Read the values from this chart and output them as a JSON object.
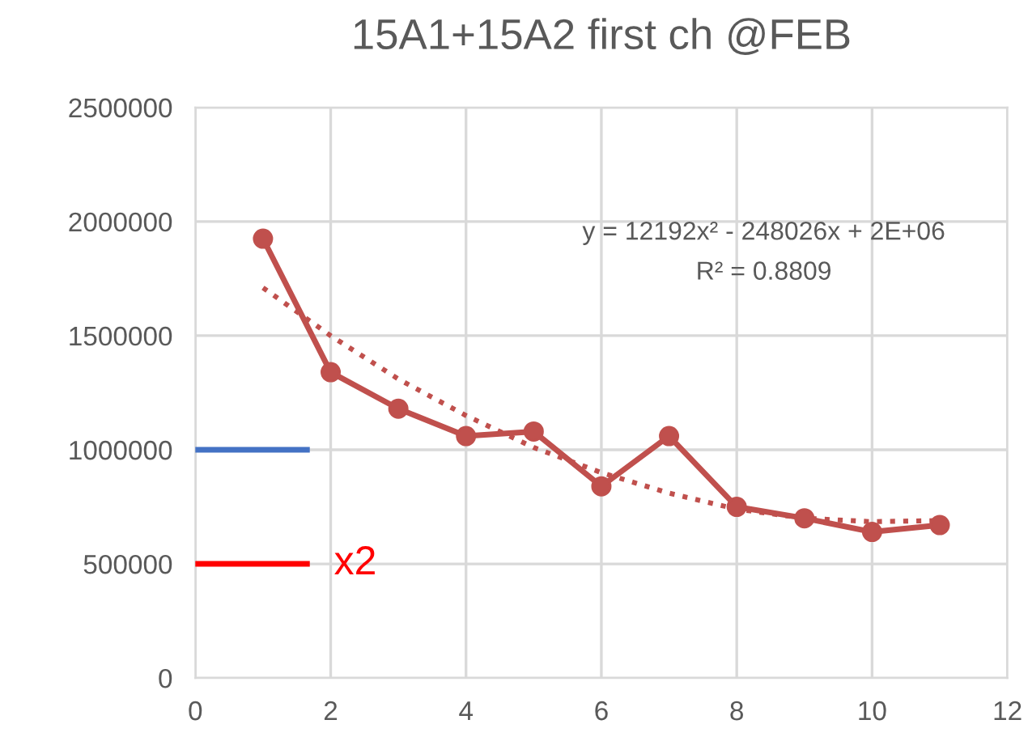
{
  "chart_data": {
    "type": "line",
    "title": "15A1+15A2 first ch @FEB",
    "x": [
      1,
      2,
      3,
      4,
      5,
      6,
      7,
      8,
      9,
      10,
      11
    ],
    "series": [
      {
        "color": "#c0504d",
        "values": [
          1925000,
          1340000,
          1180000,
          1060000,
          1080000,
          840000,
          1060000,
          750000,
          700000,
          640000,
          670000
        ],
        "marker": "circle",
        "line_style": "solid"
      },
      {
        "type": "line",
        "color": "#c0504d",
        "x": [
          1,
          2,
          3,
          4,
          5,
          6,
          7,
          8,
          9,
          10,
          11
        ],
        "values": [
          1710000,
          1500000,
          1310000,
          1150000,
          1010000,
          900000,
          810000,
          740000,
          700000,
          685000,
          690000
        ],
        "marker": "none",
        "line_style": "dotted"
      },
      {
        "type": "line",
        "color": "#4472c4",
        "x": [
          0,
          1.65
        ],
        "values": [
          1000000,
          1000000
        ],
        "marker": "none",
        "line_style": "solid"
      },
      {
        "type": "line",
        "color": "#ff0000",
        "x": [
          0,
          1.65
        ],
        "values": [
          500000,
          500000
        ],
        "marker": "none",
        "line_style": "solid"
      }
    ],
    "annotations": [
      "x2",
      "y = 12192x² - 248026x + 2E+06",
      "R² = 0.8809"
    ],
    "xlim": [
      0,
      12
    ],
    "xticks": [
      0,
      2,
      4,
      6,
      8,
      10,
      12
    ],
    "ylim": [
      0,
      2500000
    ],
    "yticks": [
      0,
      500000,
      1000000,
      1500000,
      2000000,
      2500000
    ],
    "grid": true,
    "legend": false
  }
}
